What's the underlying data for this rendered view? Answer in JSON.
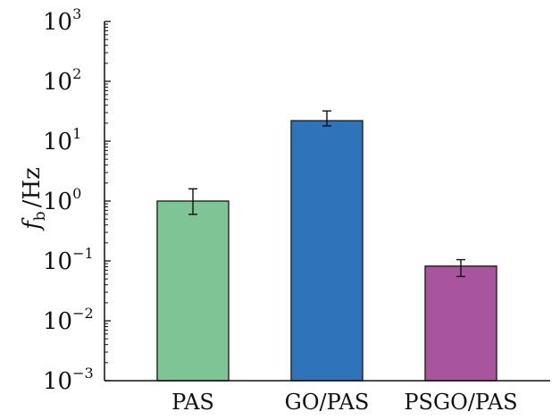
{
  "chart_data": {
    "type": "bar",
    "ylabel": "f_b /Hz",
    "ylabel_main": "f",
    "ylabel_sub": "b",
    "ylabel_unit": "/Hz",
    "yscale": "log",
    "ylim": [
      0.001,
      1000
    ],
    "yticks": [
      {
        "base": "10",
        "exp": "3"
      },
      {
        "base": "10",
        "exp": "2"
      },
      {
        "base": "10",
        "exp": "1"
      },
      {
        "base": "10",
        "exp": "0"
      },
      {
        "base": "10",
        "exp": "−1"
      },
      {
        "base": "10",
        "exp": "−2"
      },
      {
        "base": "10",
        "exp": "−3"
      }
    ],
    "categories": [
      "PAS",
      "GO/PAS",
      "PSGO/PAS"
    ],
    "values": [
      1.0,
      22,
      0.082
    ],
    "error_low": [
      0.6,
      18,
      0.055
    ],
    "error_high": [
      1.6,
      32,
      0.105
    ],
    "colors": [
      "#7ec596",
      "#2f73ba",
      "#a8559d"
    ]
  }
}
